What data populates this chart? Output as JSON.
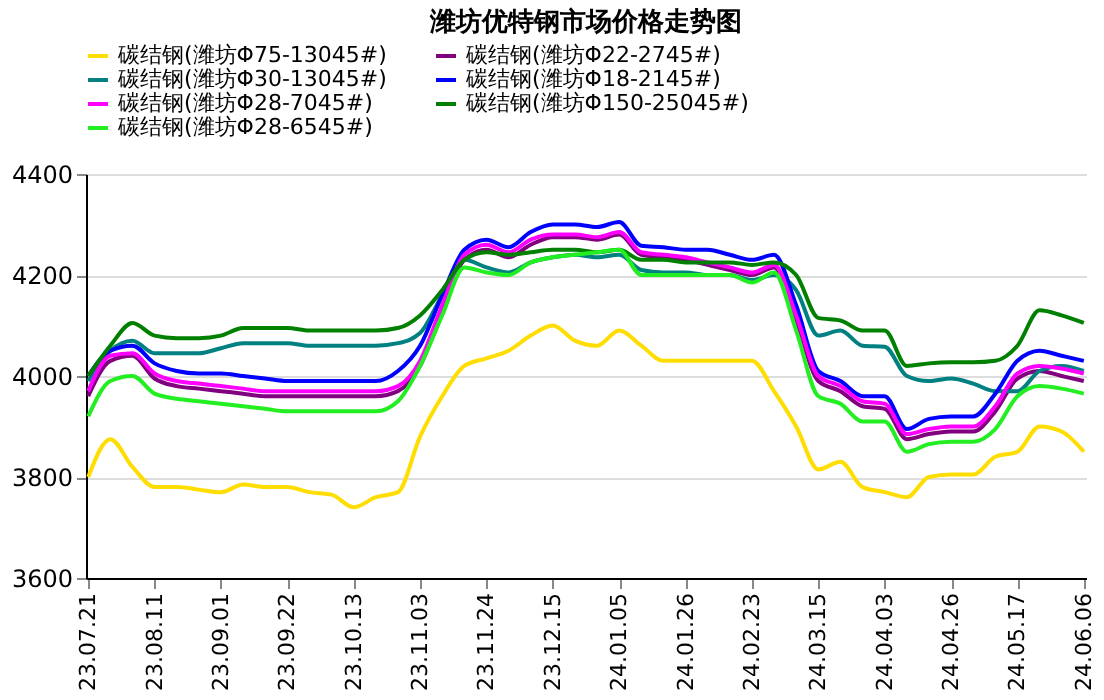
{
  "chart_data": {
    "type": "line",
    "title": "潍坊优特钢市场价格走势图",
    "categories": [
      "23.07.21",
      null,
      null,
      "23.08.11",
      null,
      null,
      "23.09.01",
      null,
      null,
      "23.09.22",
      null,
      null,
      "23.10.13",
      null,
      null,
      "23.11.03",
      null,
      null,
      "23.11.24",
      null,
      null,
      "23.12.15",
      null,
      null,
      "24.01.05",
      null,
      null,
      "24.01.26",
      null,
      null,
      "24.02.23",
      null,
      null,
      "24.03.15",
      null,
      null,
      "24.04.03",
      null,
      null,
      "24.04.26",
      null,
      null,
      "24.05.17",
      null,
      null,
      "24.06.06"
    ],
    "series": [
      {
        "name": "碳结钢(潍坊Φ75-13045#)",
        "color": "#ffdd00",
        "values": [
          3800,
          3875,
          3820,
          3780,
          3780,
          3775,
          3770,
          3785,
          3780,
          3780,
          3770,
          3765,
          3740,
          3760,
          3770,
          3880,
          3960,
          4020,
          4035,
          4050,
          4080,
          4100,
          4070,
          4060,
          4090,
          4060,
          4030,
          4030,
          4030,
          4030,
          4030,
          3970,
          3900,
          3815,
          3830,
          3780,
          3770,
          3760,
          3800,
          3805,
          3805,
          3840,
          3850,
          3900,
          3890,
          3850
        ]
      },
      {
        "name": "碳结钢(潍坊Φ22-2745#)",
        "color": "#800080",
        "values": [
          3960,
          4030,
          4040,
          3995,
          3980,
          3975,
          3970,
          3965,
          3960,
          3960,
          3960,
          3960,
          3960,
          3960,
          3970,
          4020,
          4130,
          4230,
          4250,
          4235,
          4260,
          4275,
          4275,
          4270,
          4280,
          4240,
          4235,
          4230,
          4220,
          4210,
          4200,
          4215,
          4110,
          3990,
          3970,
          3940,
          3935,
          3875,
          3885,
          3890,
          3890,
          3930,
          3995,
          4010,
          4000,
          3990
        ]
      },
      {
        "name": "碳结钢(潍坊Φ30-13045#)",
        "color": "#008080",
        "values": [
          3990,
          4050,
          4070,
          4045,
          4045,
          4045,
          4055,
          4065,
          4065,
          4065,
          4060,
          4060,
          4060,
          4060,
          4065,
          4085,
          4160,
          4230,
          4215,
          4205,
          4225,
          4235,
          4240,
          4235,
          4240,
          4210,
          4205,
          4205,
          4200,
          4200,
          4190,
          4200,
          4170,
          4080,
          4090,
          4060,
          4058,
          4000,
          3990,
          3995,
          3985,
          3970,
          3970,
          4010,
          4020,
          4010
        ]
      },
      {
        "name": "碳结钢(潍坊Φ18-2145#)",
        "color": "#0000ff",
        "values": [
          4000,
          4050,
          4060,
          4025,
          4010,
          4005,
          4005,
          4000,
          3995,
          3990,
          3990,
          3990,
          3990,
          3990,
          4010,
          4060,
          4160,
          4250,
          4270,
          4255,
          4285,
          4300,
          4300,
          4295,
          4305,
          4258,
          4255,
          4250,
          4250,
          4240,
          4230,
          4240,
          4140,
          4010,
          3990,
          3960,
          3960,
          3895,
          3915,
          3920,
          3920,
          3965,
          4030,
          4050,
          4040,
          4030
        ]
      },
      {
        "name": "碳结钢(潍坊Φ28-7045#)",
        "color": "#ff00ff",
        "values": [
          3970,
          4040,
          4045,
          4005,
          3990,
          3985,
          3980,
          3975,
          3970,
          3970,
          3970,
          3970,
          3970,
          3970,
          3980,
          4030,
          4140,
          4240,
          4260,
          4245,
          4270,
          4280,
          4280,
          4275,
          4285,
          4245,
          4240,
          4235,
          4225,
          4215,
          4205,
          4220,
          4120,
          4000,
          3980,
          3950,
          3945,
          3885,
          3895,
          3900,
          3900,
          3940,
          4005,
          4020,
          4015,
          4005
        ]
      },
      {
        "name": "碳结钢(潍坊Φ150-25045#)",
        "color": "#008000",
        "values": [
          4000,
          4060,
          4105,
          4080,
          4075,
          4075,
          4080,
          4095,
          4095,
          4095,
          4090,
          4090,
          4090,
          4090,
          4095,
          4120,
          4170,
          4230,
          4245,
          4240,
          4245,
          4250,
          4250,
          4245,
          4250,
          4230,
          4230,
          4225,
          4225,
          4225,
          4220,
          4225,
          4200,
          4115,
          4110,
          4090,
          4090,
          4020,
          4025,
          4027,
          4027,
          4030,
          4060,
          4130,
          4120,
          4105
        ]
      },
      {
        "name": "碳结钢(潍坊Φ28-6545#)",
        "color": "#22ee22",
        "values": [
          3920,
          3990,
          4000,
          3965,
          3955,
          3950,
          3945,
          3940,
          3935,
          3930,
          3930,
          3930,
          3930,
          3930,
          3950,
          4020,
          4120,
          4215,
          4205,
          4200,
          4225,
          4235,
          4240,
          4245,
          4250,
          4200,
          4200,
          4200,
          4200,
          4200,
          4185,
          4205,
          4090,
          3960,
          3945,
          3910,
          3910,
          3850,
          3865,
          3870,
          3870,
          3895,
          3960,
          3980,
          3975,
          3965
        ]
      }
    ],
    "ylim": [
      3600,
      4400
    ],
    "yticks": [
      3600,
      3800,
      4000,
      4200,
      4400
    ],
    "grid": "y",
    "legend": "top",
    "marker": "none",
    "line_style": "solid"
  }
}
